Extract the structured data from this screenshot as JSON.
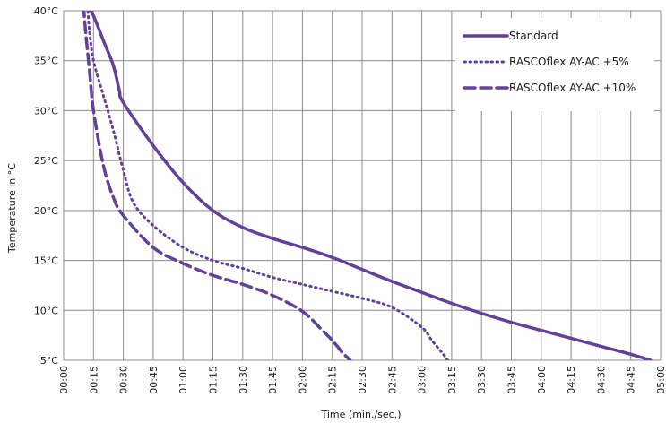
{
  "chart_data": {
    "type": "line",
    "title": "",
    "xlabel": "Time (min./sec.)",
    "ylabel": "Temperature in °C",
    "x_unit": "min:sec",
    "x_ticks": [
      "00:00",
      "00:15",
      "00:30",
      "00:45",
      "01:00",
      "01:15",
      "01:30",
      "01:45",
      "02:00",
      "02:15",
      "02:30",
      "02:45",
      "03:00",
      "03:15",
      "03:30",
      "03:45",
      "04:00",
      "04:15",
      "04:30",
      "04:45",
      "05:00"
    ],
    "y_ticks": [
      "5°C",
      "10°C",
      "15°C",
      "20°C",
      "25°C",
      "30°C",
      "35°C",
      "40°C"
    ],
    "xlim": [
      "00:00",
      "05:00"
    ],
    "ylim": [
      5,
      40
    ],
    "grid": true,
    "legend_position": "top-right",
    "color": "#64409a",
    "series": [
      {
        "name": "Standard",
        "style": "solid",
        "points": [
          [
            "00:12",
            40.5
          ],
          [
            "00:15",
            39.5
          ],
          [
            "00:20",
            37.0
          ],
          [
            "00:25",
            34.5
          ],
          [
            "00:28",
            32.0
          ],
          [
            "00:30",
            30.8
          ],
          [
            "00:45",
            26.5
          ],
          [
            "01:00",
            22.8
          ],
          [
            "01:15",
            20.0
          ],
          [
            "01:30",
            18.3
          ],
          [
            "01:45",
            17.2
          ],
          [
            "02:00",
            16.3
          ],
          [
            "02:15",
            15.3
          ],
          [
            "02:30",
            14.1
          ],
          [
            "02:45",
            12.9
          ],
          [
            "03:00",
            11.8
          ],
          [
            "03:15",
            10.7
          ],
          [
            "03:30",
            9.7
          ],
          [
            "03:45",
            8.8
          ],
          [
            "04:00",
            8.0
          ],
          [
            "04:15",
            7.2
          ],
          [
            "04:30",
            6.4
          ],
          [
            "04:45",
            5.6
          ],
          [
            "04:55",
            5.0
          ]
        ]
      },
      {
        "name": "RASCOflex AY-AC +5%",
        "style": "dotted",
        "points": [
          [
            "00:12",
            40.5
          ],
          [
            "00:13",
            38.0
          ],
          [
            "00:15",
            35.0
          ],
          [
            "00:20",
            31.5
          ],
          [
            "00:25",
            28.0
          ],
          [
            "00:30",
            24.0
          ],
          [
            "00:35",
            20.8
          ],
          [
            "00:45",
            18.5
          ],
          [
            "01:00",
            16.3
          ],
          [
            "01:15",
            15.0
          ],
          [
            "01:30",
            14.2
          ],
          [
            "01:45",
            13.3
          ],
          [
            "02:00",
            12.6
          ],
          [
            "02:15",
            11.9
          ],
          [
            "02:30",
            11.2
          ],
          [
            "02:45",
            10.3
          ],
          [
            "03:00",
            8.3
          ],
          [
            "03:05",
            7.0
          ],
          [
            "03:10",
            5.8
          ],
          [
            "03:13",
            5.0
          ]
        ]
      },
      {
        "name": "RASCOflex AY-AC +10%",
        "style": "dashed",
        "points": [
          [
            "00:10",
            40.5
          ],
          [
            "00:11",
            38.0
          ],
          [
            "00:13",
            34.0
          ],
          [
            "00:15",
            30.0
          ],
          [
            "00:20",
            24.5
          ],
          [
            "00:25",
            21.3
          ],
          [
            "00:30",
            19.5
          ],
          [
            "00:45",
            16.3
          ],
          [
            "01:00",
            14.7
          ],
          [
            "01:15",
            13.5
          ],
          [
            "01:30",
            12.6
          ],
          [
            "01:45",
            11.5
          ],
          [
            "02:00",
            9.9
          ],
          [
            "02:10",
            8.0
          ],
          [
            "02:15",
            7.0
          ],
          [
            "02:20",
            5.8
          ],
          [
            "02:24",
            5.0
          ]
        ]
      }
    ]
  }
}
